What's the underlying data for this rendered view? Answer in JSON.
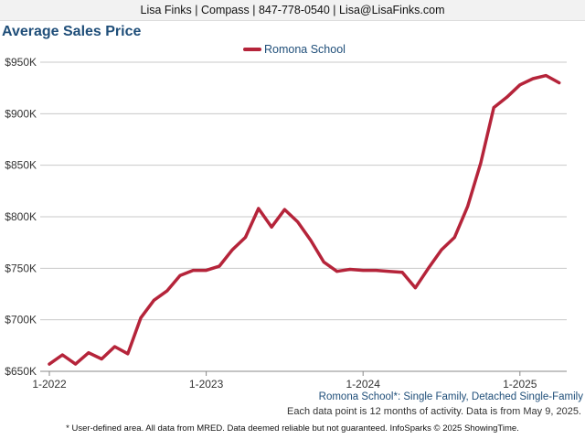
{
  "header": {
    "contact": "Lisa Finks | Compass | 847-778-0540 | Lisa@LisaFinks.com"
  },
  "chart_data": {
    "type": "line",
    "title": "Average Sales Price",
    "x_ticks": [
      "1-2022",
      "1-2023",
      "1-2024",
      "1-2025"
    ],
    "y_ticks": [
      "$650K",
      "$700K",
      "$750K",
      "$800K",
      "$850K",
      "$900K",
      "$950K"
    ],
    "ylim": [
      650000,
      950000
    ],
    "grid": true,
    "legend_position": "top-center",
    "series": [
      {
        "name": "Romona School",
        "color": "#b5243a",
        "x": [
          "1-2022",
          "2-2022",
          "3-2022",
          "4-2022",
          "5-2022",
          "6-2022",
          "7-2022",
          "8-2022",
          "9-2022",
          "10-2022",
          "11-2022",
          "12-2022",
          "1-2023",
          "2-2023",
          "3-2023",
          "4-2023",
          "5-2023",
          "6-2023",
          "7-2023",
          "8-2023",
          "9-2023",
          "10-2023",
          "11-2023",
          "12-2023",
          "1-2024",
          "2-2024",
          "3-2024",
          "4-2024",
          "5-2024",
          "6-2024",
          "7-2024",
          "8-2024",
          "9-2024",
          "10-2024",
          "11-2024",
          "12-2024",
          "1-2025",
          "2-2025",
          "3-2025",
          "4-2025"
        ],
        "values": [
          657000,
          666000,
          657000,
          668000,
          662000,
          674000,
          667000,
          702000,
          719000,
          728000,
          743000,
          748000,
          748000,
          752000,
          768000,
          780000,
          808000,
          790000,
          807000,
          795000,
          777000,
          756000,
          747000,
          749000,
          748000,
          748000,
          747000,
          746000,
          731000,
          750000,
          768000,
          780000,
          810000,
          852000,
          906000,
          916000,
          928000,
          934000,
          937000,
          930000
        ]
      }
    ]
  },
  "notes": {
    "area": "Romona School*: Single Family, Detached Single-Family",
    "activity": "Each data point is 12 months of activity. Data is from May 9, 2025.",
    "disclaimer": "* User-defined area. All data from MRED. Data deemed reliable but not guaranteed. InfoSparks © 2025 ShowingTime."
  }
}
